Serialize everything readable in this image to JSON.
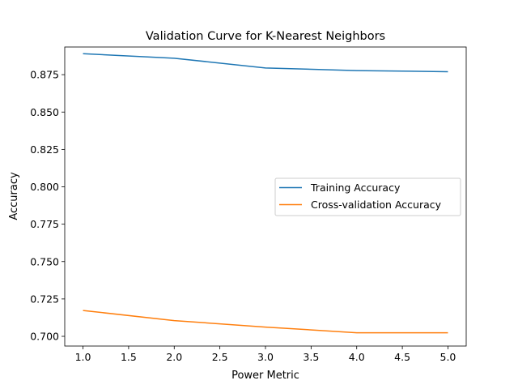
{
  "chart_data": {
    "type": "line",
    "title": "Validation Curve for K-Nearest Neighbors",
    "xlabel": "Power Metric",
    "ylabel": "Accuracy",
    "x": [
      1,
      2,
      3,
      4,
      5
    ],
    "xlim": [
      0.8,
      5.2
    ],
    "ylim": [
      0.6935,
      0.8935
    ],
    "xticks": [
      1.0,
      1.5,
      2.0,
      2.5,
      3.0,
      3.5,
      4.0,
      4.5,
      5.0
    ],
    "xtick_labels": [
      "1.0",
      "1.5",
      "2.0",
      "2.5",
      "3.0",
      "3.5",
      "4.0",
      "4.5",
      "5.0"
    ],
    "yticks": [
      0.7,
      0.725,
      0.75,
      0.775,
      0.8,
      0.825,
      0.85,
      0.875
    ],
    "ytick_labels": [
      "0.700",
      "0.725",
      "0.750",
      "0.775",
      "0.800",
      "0.825",
      "0.850",
      "0.875"
    ],
    "grid": false,
    "legend_position": "center-right",
    "series": [
      {
        "name": "Training Accuracy",
        "color": "#1f77b4",
        "values": [
          0.889,
          0.886,
          0.8795,
          0.8777,
          0.877
        ]
      },
      {
        "name": "Cross-validation Accuracy",
        "color": "#ff7f0e",
        "values": [
          0.7173,
          0.7105,
          0.7062,
          0.7024,
          0.7024
        ]
      }
    ]
  }
}
